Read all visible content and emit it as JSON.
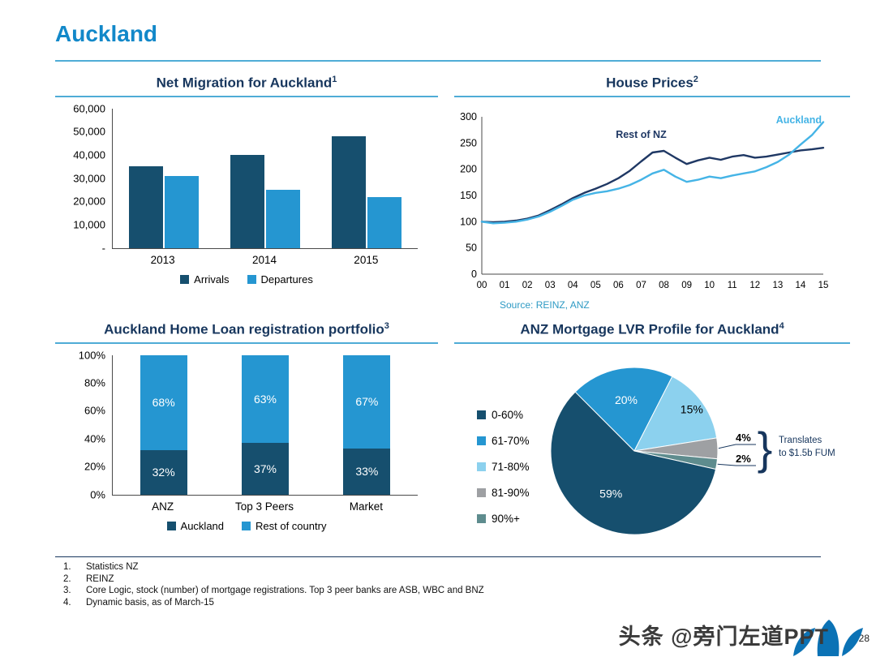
{
  "page": {
    "title": "Auckland",
    "page_number": "28",
    "watermark": "头条 @旁门左道PPT",
    "accent_color": "#1288C9",
    "heading_color": "#17365D",
    "rule_color": "#4FACD6"
  },
  "footnotes": [
    {
      "num": "1.",
      "text": "Statistics NZ"
    },
    {
      "num": "2.",
      "text": "REINZ"
    },
    {
      "num": "3.",
      "text": "Core Logic, stock (number) of mortgage registrations. Top 3 peer banks are ASB, WBC and BNZ"
    },
    {
      "num": "4.",
      "text": "Dynamic basis, as of March-15"
    }
  ],
  "chart_data": [
    {
      "type": "bar",
      "title": "Net Migration for Auckland",
      "footnote_ref": "1",
      "categories": [
        "2013",
        "2014",
        "2015"
      ],
      "series": [
        {
          "name": "Arrivals",
          "color": "#164F6E",
          "values": [
            35000,
            40000,
            48000
          ]
        },
        {
          "name": "Departures",
          "color": "#2596D1",
          "values": [
            31000,
            25000,
            22000
          ]
        }
      ],
      "ylim": [
        0,
        60000
      ],
      "yticks": [
        {
          "label": "60,000",
          "value": 60000
        },
        {
          "label": "50,000",
          "value": 50000
        },
        {
          "label": "40,000",
          "value": 40000
        },
        {
          "label": "30,000",
          "value": 30000
        },
        {
          "label": "20,000",
          "value": 20000
        },
        {
          "label": "10,000",
          "value": 10000
        },
        {
          "label": "-",
          "value": 0
        }
      ],
      "legend_position": "bottom"
    },
    {
      "type": "line",
      "title": "House Prices",
      "footnote_ref": "2",
      "xlabels": [
        "00",
        "01",
        "02",
        "03",
        "04",
        "05",
        "06",
        "07",
        "08",
        "09",
        "10",
        "11",
        "12",
        "13",
        "14",
        "15"
      ],
      "ylim": [
        0,
        300
      ],
      "yticks": [
        0,
        50,
        100,
        150,
        200,
        250,
        300
      ],
      "series": [
        {
          "name": "Rest of NZ",
          "color": "#1F3864",
          "values": [
            100,
            99,
            100,
            102,
            106,
            112,
            122,
            133,
            145,
            155,
            163,
            172,
            183,
            197,
            215,
            232,
            235,
            222,
            210,
            217,
            222,
            218,
            224,
            227,
            222,
            224,
            228,
            232,
            236,
            238,
            241
          ]
        },
        {
          "name": "Auckland",
          "color": "#45B4E6",
          "values": [
            100,
            97,
            98,
            100,
            104,
            110,
            119,
            130,
            142,
            150,
            155,
            158,
            163,
            170,
            180,
            192,
            199,
            186,
            176,
            180,
            186,
            183,
            188,
            192,
            196,
            204,
            214,
            228,
            247,
            265,
            290
          ]
        }
      ],
      "source": "Source: REINZ, ANZ"
    },
    {
      "type": "stacked-bar",
      "title": "Auckland Home Loan registration portfolio",
      "footnote_ref": "3",
      "categories": [
        "ANZ",
        "Top 3 Peers",
        "Market"
      ],
      "series": [
        {
          "name": "Auckland",
          "color": "#164F6E",
          "values": [
            32,
            37,
            33
          ]
        },
        {
          "name": "Rest of country",
          "color": "#2596D1",
          "values": [
            68,
            63,
            67
          ]
        }
      ],
      "ylim": [
        0,
        100
      ],
      "yticks": [
        {
          "label": "100%",
          "value": 100
        },
        {
          "label": "80%",
          "value": 80
        },
        {
          "label": "60%",
          "value": 60
        },
        {
          "label": "40%",
          "value": 40
        },
        {
          "label": "20%",
          "value": 20
        },
        {
          "label": "0%",
          "value": 0
        }
      ],
      "legend_position": "bottom"
    },
    {
      "type": "pie",
      "title": "ANZ Mortgage LVR Profile for Auckland",
      "footnote_ref": "4",
      "start_angle": -45,
      "slices": [
        {
          "label": "61-70%",
          "value": 20,
          "display": "20%",
          "color": "#2596D1",
          "label_color": "#ffffff"
        },
        {
          "label": "71-80%",
          "value": 15,
          "display": "15%",
          "color": "#8CD1EE",
          "label_color": "#000000"
        },
        {
          "label": "81-90%",
          "value": 4,
          "display": "4%",
          "color": "#9EA0A3",
          "label_color": "#000000"
        },
        {
          "label": "90%+",
          "value": 2,
          "display": "2%",
          "color": "#5E8C8E",
          "label_color": "#000000"
        },
        {
          "label": "0-60%",
          "value": 59,
          "display": "59%",
          "color": "#164F6E",
          "label_color": "#ffffff"
        }
      ],
      "legend_order": [
        "0-60%",
        "61-70%",
        "71-80%",
        "81-90%",
        "90%+"
      ],
      "annotation": {
        "lines": [
          "Translates",
          "to $1.5b FUM"
        ]
      }
    }
  ]
}
